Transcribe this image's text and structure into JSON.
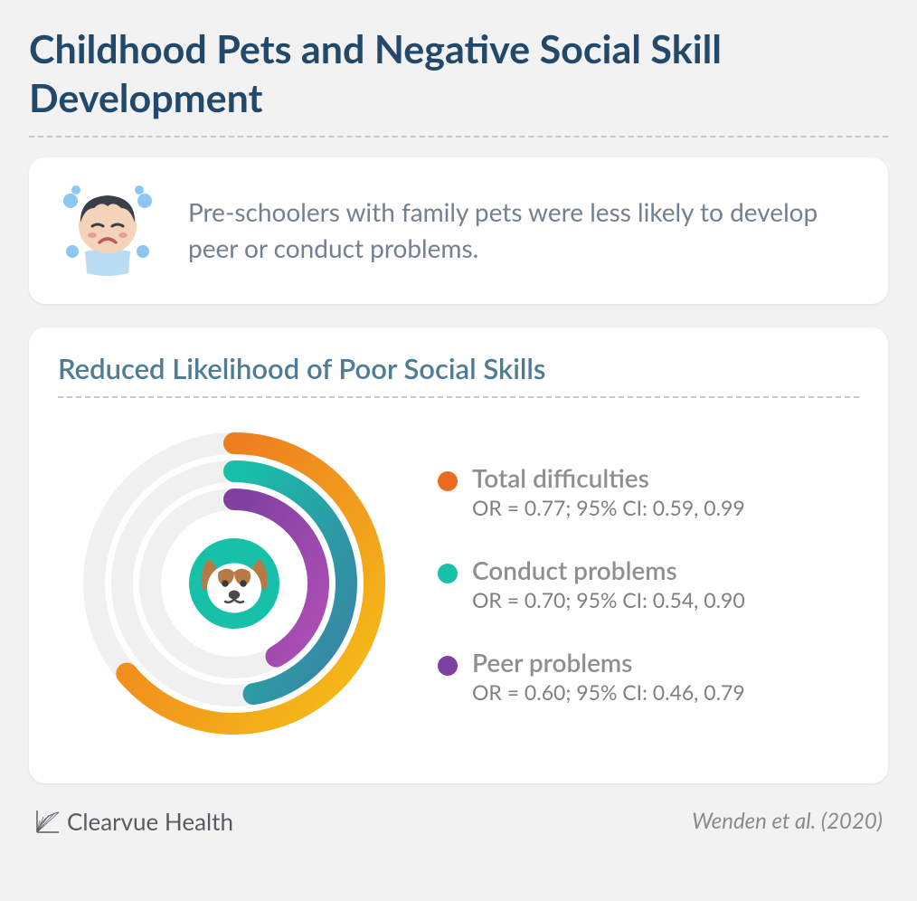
{
  "title": "Childhood Pets and Negative Social Skill Development",
  "intro": {
    "text": "Pre-schoolers with family pets were less likely to develop peer or conduct problems."
  },
  "chart": {
    "title": "Reduced Likelihood of Poor Social Skills",
    "type": "radial-bar",
    "background_color": "#ffffff",
    "track_color": "#f0f0f0",
    "center_icon_bg": "#17c1a9",
    "start_angle_deg": 0,
    "stroke_width": 24,
    "rings": [
      {
        "label": "Total difficulties",
        "stat": "OR = 0.77; 95% CI: 0.59, 0.99",
        "value": 0.77,
        "sweep_deg": 230,
        "radius": 155,
        "dot_color": "#ec6b22",
        "gradient_start": "#ec6b22",
        "gradient_end": "#f6c217"
      },
      {
        "label": "Conduct problems",
        "stat": "OR = 0.70; 95% CI: 0.54, 0.90",
        "value": 0.7,
        "sweep_deg": 170,
        "radius": 124,
        "dot_color": "#17c1a9",
        "gradient_start": "#17c1a9",
        "gradient_end": "#3b7fa3"
      },
      {
        "label": "Peer problems",
        "stat": "OR = 0.60; 95% CI: 0.46, 0.79",
        "value": 0.6,
        "sweep_deg": 150,
        "radius": 93,
        "dot_color": "#7d3fa0",
        "gradient_start": "#7d3fa0",
        "gradient_end": "#b04fb5"
      }
    ]
  },
  "footer": {
    "brand": "Clearvue Health",
    "citation": "Wenden et al. (2020)"
  },
  "palette": {
    "title_color": "#22486a",
    "section_title_color": "#4e7c94",
    "body_text_color": "#728091",
    "page_bg": "#f2f2f2",
    "card_bg": "#ffffff",
    "divider_color": "#c8c8c8"
  },
  "icons": {
    "child_hair": "#3a3e4a",
    "child_skin": "#f4d3b8",
    "child_shirt": "#b9dcf5",
    "child_blush": "#e89ca0",
    "child_tear": "#8bc7f0",
    "dog_fur_main": "#ffffff",
    "dog_fur_patch": "#b67a46",
    "dog_nose": "#4a4a4a"
  }
}
